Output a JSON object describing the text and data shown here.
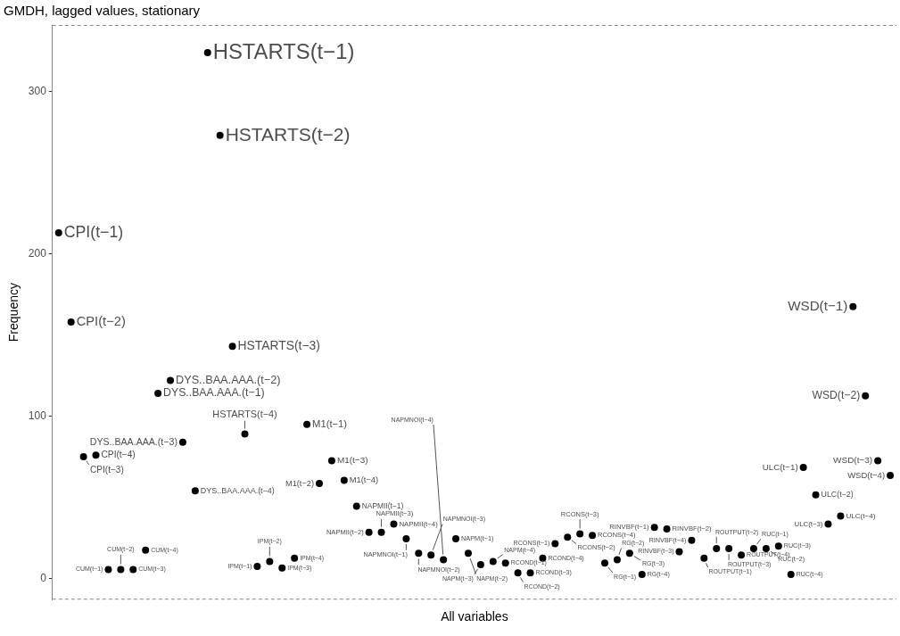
{
  "chart_data": {
    "type": "scatter",
    "title": "GMDH, lagged values, stationary",
    "xlabel": "All variables",
    "ylabel": "Frequency",
    "categories": [
      null,
      null,
      null,
      null,
      null,
      null,
      null,
      null,
      null,
      null,
      null,
      null,
      null,
      null,
      null,
      null,
      null,
      null,
      null,
      null,
      null,
      null,
      null,
      null,
      null,
      null,
      null,
      null,
      null,
      null,
      null,
      null,
      null,
      null,
      null,
      null,
      null,
      null,
      null,
      null,
      null,
      null,
      null,
      null,
      null,
      null,
      null,
      null,
      null,
      null,
      null,
      null,
      null,
      null,
      null,
      null,
      null,
      null,
      null,
      null,
      null,
      null,
      null,
      null,
      null,
      null,
      null,
      null
    ],
    "values": [
      213,
      158,
      75,
      76,
      5.5,
      5.5,
      5.5,
      17.5,
      114,
      122,
      84,
      54,
      324,
      273,
      143,
      89,
      7.5,
      10.5,
      6.5,
      12.5,
      95,
      58.5,
      72.5,
      60.5,
      44.5,
      28.5,
      28.5,
      33.5,
      24.5,
      15.5,
      14.5,
      11.5,
      24.5,
      15.5,
      8.5,
      10.5,
      9.5,
      3.5,
      3.5,
      12.5,
      21.5,
      25.5,
      27.5,
      26.5,
      9.5,
      11.5,
      15.5,
      2.5,
      31.5,
      30.5,
      16.5,
      23.5,
      12.5,
      18.5,
      18.5,
      14.5,
      18.5,
      18.5,
      20,
      2.5,
      68.5,
      51.5,
      33.5,
      38.5,
      167.5,
      112.5,
      72.5,
      63.5
    ],
    "value_labels": [
      "CPI(t−1)",
      "CPI(t−2)",
      "CPI(t−3)",
      "CPI(t−4)",
      "CUM(t−1)",
      "CUM(t−2)",
      "CUM(t−3)",
      "CUM(t−4)",
      "DYS..BAA.AAA.(t−1)",
      "DYS..BAA.AAA.(t−2)",
      "DYS..BAA.AAA.(t−3)",
      "DYS..BAA.AAA.(t−4)",
      "HSTARTS(t−1)",
      "HSTARTS(t−2)",
      "HSTARTS(t−3)",
      "HSTARTS(t−4)",
      "IPM(t−1)",
      "IPM(t−2)",
      "IPM(t−3)",
      "IPM(t−4)",
      "M1(t−1)",
      "M1(t−2)",
      "M1(t−3)",
      "M1(t−4)",
      "NAPMII(t−1)",
      "NAPMII(t−2)",
      "NAPMII(t−3)",
      "NAPMII(t−4)",
      "NAPMNOI(t−1)",
      "NAPMNOI(t−2)",
      "NAPMNOI(t−3)",
      "NAPMNOI(t−4)",
      "NAPM(t−1)",
      "NAPM(t−2)",
      "NAPM(t−3)",
      "NAPM(t−4)",
      "RCOND(t−1)",
      "RCOND(t−2)",
      "RCOND(t−3)",
      "RCOND(t−4)",
      "RCONS(t−1)",
      "RCONS(t−2)",
      "RCONS(t−3)",
      "RCONS(t−4)",
      "RG(t−1)",
      "RG(t−2)",
      "RG(t−3)",
      "RG(t−4)",
      "RINVBF(t−1)",
      "RINVBF(t−2)",
      "RINVBF(t−3)",
      "RINVBF(t−4)",
      "ROUTPUT(t−1)",
      "ROUTPUT(t−2)",
      "ROUTPUT(t−3)",
      "ROUTPUT(t−4)",
      "RUC(t−1)",
      "RUC(t−2)",
      "RUC(t−3)",
      "RUC(t−4)",
      "ULC(t−1)",
      "ULC(t−2)",
      "ULC(t−3)",
      "ULC(t−4)",
      "WSD(t−1)",
      "WSD(t−2)",
      "WSD(t−3)",
      "WSD(t−4)"
    ],
    "color": "#000000",
    "marker": "circle",
    "ylim": [
      -13,
      341
    ],
    "yticks": [
      0,
      100,
      200,
      300
    ],
    "tick_labels": "y",
    "grid": false,
    "legend": false
  }
}
